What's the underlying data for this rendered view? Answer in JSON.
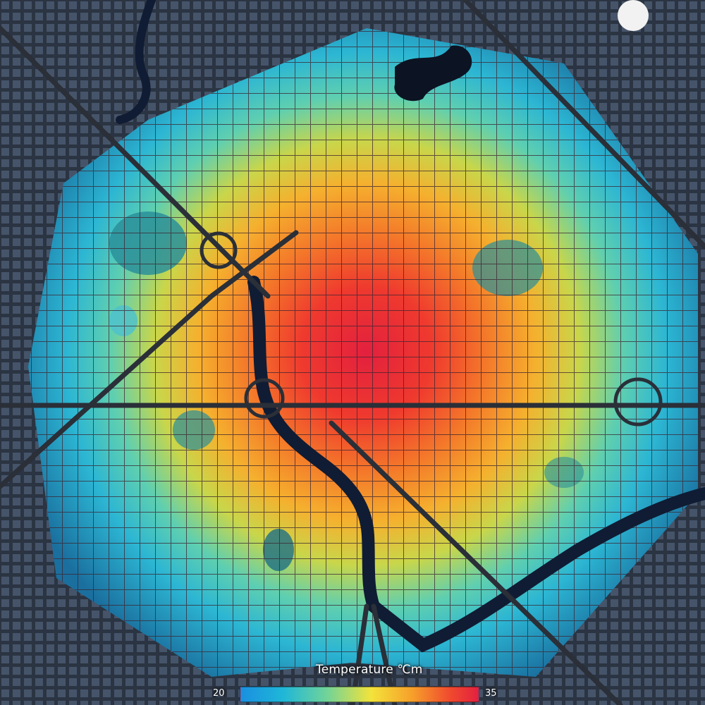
{
  "legend": {
    "title": "Temperature  ℃m",
    "min_label": "20",
    "max_label": "35",
    "colors": [
      "#1a8fe0",
      "#1fb7d8",
      "#6fd39a",
      "#f3e33a",
      "#f6a02a",
      "#f04a2e",
      "#e3203e"
    ]
  },
  "map": {
    "style": "urban heat map over satellite imagery",
    "hot_color": "#e3203e",
    "cool_color": "#1fb7d8",
    "water_color": "#101c33",
    "road_color": "#2a2f38"
  }
}
